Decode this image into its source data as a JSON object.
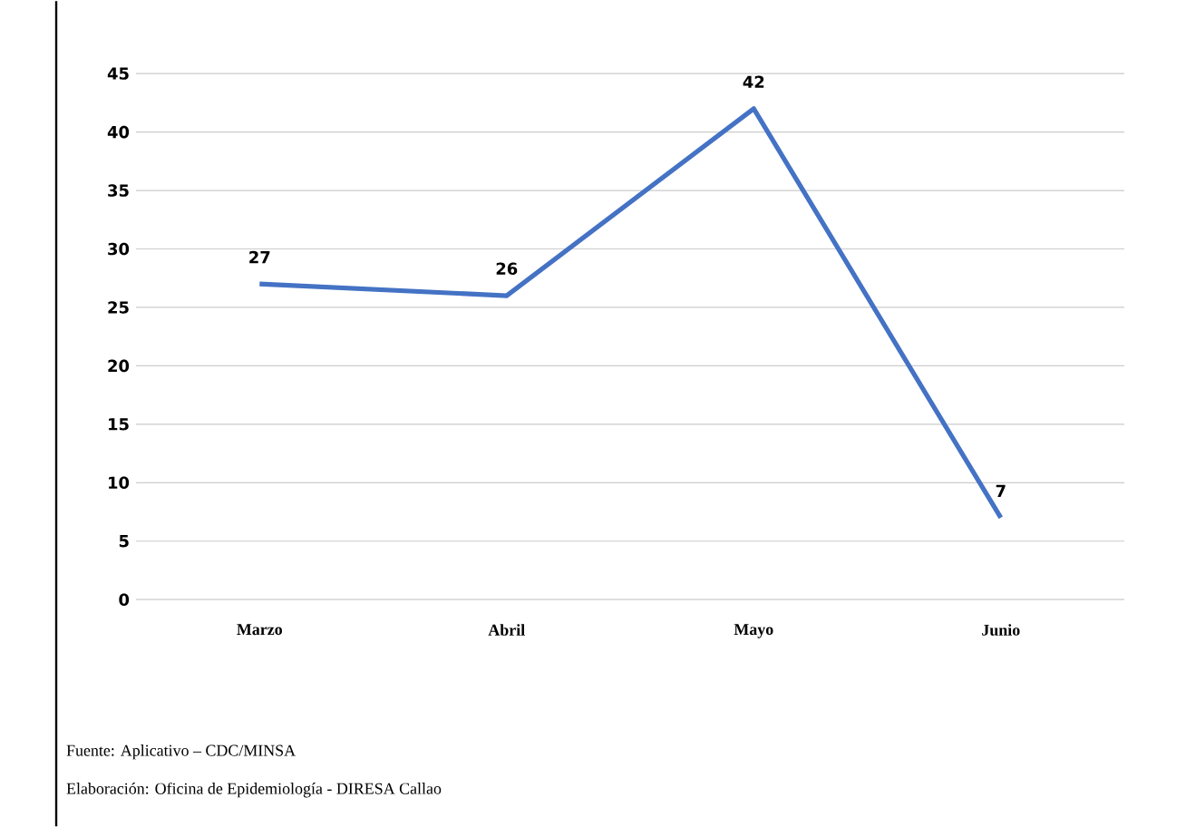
{
  "chart_data": {
    "type": "line",
    "categories": [
      "Marzo",
      "Abril",
      "Mayo",
      "Junio"
    ],
    "series": [
      {
        "color": "#4472c4",
        "values": [
          27,
          26,
          42,
          7
        ]
      }
    ],
    "ylim": [
      0,
      45
    ],
    "yticks": [
      0,
      5,
      10,
      15,
      20,
      25,
      30,
      35,
      40,
      45
    ],
    "grid": "y",
    "marker": "none",
    "line_style": "solid",
    "data_labels": true,
    "annotations": [
      "Fuente: Aplicativo – CDC/MINSA",
      "Elaboración: Oficina de Epidemiología - DIRESA Callao"
    ]
  }
}
